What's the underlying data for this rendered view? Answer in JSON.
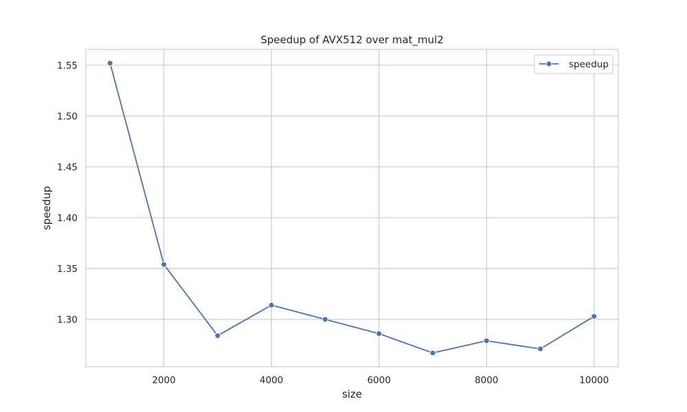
{
  "chart_data": {
    "type": "line",
    "title": "Speedup of AVX512 over mat_mul2",
    "xlabel": "size",
    "ylabel": "speedup",
    "xlim": [
      550,
      10450
    ],
    "ylim": [
      1.2535,
      1.5655
    ],
    "xticks": [
      2000,
      4000,
      6000,
      8000,
      10000
    ],
    "xtick_labels": [
      "2000",
      "4000",
      "6000",
      "8000",
      "10000"
    ],
    "yticks": [
      1.3,
      1.35,
      1.4,
      1.45,
      1.5,
      1.55
    ],
    "ytick_labels": [
      "1.30",
      "1.35",
      "1.40",
      "1.45",
      "1.50",
      "1.55"
    ],
    "grid": true,
    "legend": "top-right",
    "series": [
      {
        "name": "speedup",
        "color": "#4c72b0",
        "marker": "circle",
        "x": [
          1000,
          2000,
          3000,
          4000,
          5000,
          6000,
          7000,
          8000,
          9000,
          10000
        ],
        "y": [
          1.552,
          1.354,
          1.284,
          1.314,
          1.3,
          1.286,
          1.267,
          1.279,
          1.271,
          1.303
        ]
      }
    ]
  }
}
